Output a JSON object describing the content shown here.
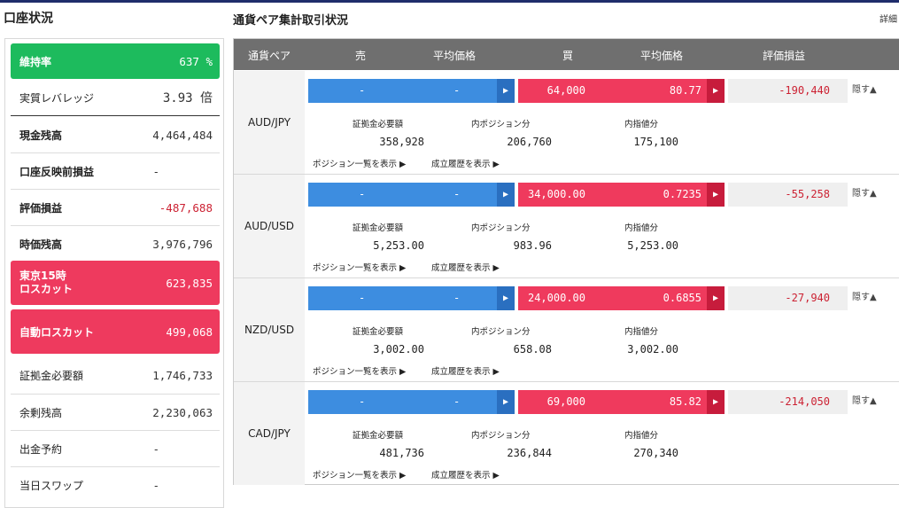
{
  "left": {
    "title": "口座状況",
    "rows": [
      {
        "label": "維持率",
        "value": "637 %"
      },
      {
        "label": "実質レバレッジ",
        "value": "3.93 倍"
      },
      {
        "label": "現金残高",
        "value": "4,464,484"
      },
      {
        "label": "口座反映前損益",
        "value": "-"
      },
      {
        "label": "評価損益",
        "value": "-487,688"
      },
      {
        "label": "時価残高",
        "value": "3,976,796"
      },
      {
        "label": "東京15時",
        "label2": "ロスカット",
        "value": "623,835"
      },
      {
        "label": "自動ロスカット",
        "value": "499,068"
      },
      {
        "label": "証拠金必要額",
        "value": "1,746,733"
      },
      {
        "label": "余剰残高",
        "value": "2,230,063"
      },
      {
        "label": "出金予約",
        "value": "-"
      },
      {
        "label": "当日スワップ",
        "value": "-"
      }
    ]
  },
  "right": {
    "title": "通貨ペア集計取引状況",
    "detail_link": "詳細",
    "headers": {
      "pair": "通貨ペア",
      "sell": "売",
      "sell_avg": "平均価格",
      "buy": "買",
      "buy_avg": "平均価格",
      "pl": "評価損益"
    },
    "sub_labels": {
      "margin": "証拠金必要額",
      "position": "内ポジション分",
      "order": "内指値分"
    },
    "links": {
      "positions": "ポジション一覧を表示 ▶",
      "history": "成立履歴を表示 ▶",
      "hide": "隠す▲"
    },
    "pairs": [
      {
        "pair": "AUD/JPY",
        "sell": "-",
        "sell_avg": "-",
        "buy": "64,000",
        "buy_avg": "80.77",
        "pl": "-190,440",
        "margin": "358,928",
        "position": "206,760",
        "order": "175,100"
      },
      {
        "pair": "AUD/USD",
        "sell": "-",
        "sell_avg": "-",
        "buy": "34,000.00",
        "buy_avg": "0.7235",
        "pl": "-55,258",
        "margin": "5,253.00",
        "position": "983.96",
        "order": "5,253.00"
      },
      {
        "pair": "NZD/USD",
        "sell": "-",
        "sell_avg": "-",
        "buy": "24,000.00",
        "buy_avg": "0.6855",
        "pl": "-27,940",
        "margin": "3,002.00",
        "position": "658.08",
        "order": "3,002.00"
      },
      {
        "pair": "CAD/JPY",
        "sell": "-",
        "sell_avg": "-",
        "buy": "69,000",
        "buy_avg": "85.82",
        "pl": "-214,050",
        "margin": "481,736",
        "position": "236,844",
        "order": "270,340"
      }
    ]
  },
  "colors": {
    "green": "#1dbb5d",
    "red": "#ee3a5e",
    "blue": "#3d8de0",
    "negative": "#cc2233"
  }
}
